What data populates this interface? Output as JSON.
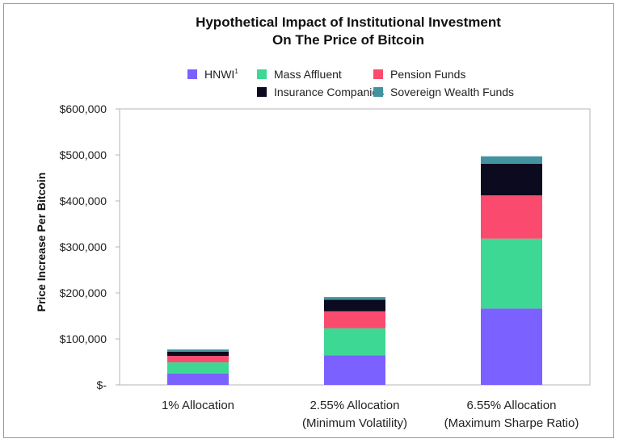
{
  "chart_data": {
    "type": "bar",
    "stacked": true,
    "title": [
      "Hypothetical Impact of Institutional Investment",
      "On The Price of Bitcoin"
    ],
    "ylabel": "Price Increase Per Bitcoin",
    "xlabel": "",
    "ylim": [
      0,
      600000
    ],
    "yticks": [
      0,
      100000,
      200000,
      300000,
      400000,
      500000,
      600000
    ],
    "ytick_labels": [
      "$-",
      "$100,000",
      "$200,000",
      "$300,000",
      "$400,000",
      "$500,000",
      "$600,000"
    ],
    "categories": [
      [
        "1% Allocation"
      ],
      [
        "2.55% Allocation",
        "(Minimum Volatility)"
      ],
      [
        "6.55% Allocation",
        "(Maximum Sharpe Ratio)"
      ]
    ],
    "legend_position": "top",
    "series": [
      {
        "name": "HNWI",
        "name_sup": "1",
        "color": "#7b61ff",
        "values": [
          25000,
          64000,
          166000
        ]
      },
      {
        "name": "Mass Affluent",
        "color": "#3dd894",
        "values": [
          24000,
          59000,
          152000
        ]
      },
      {
        "name": "Pension Funds",
        "color": "#fa4b6e",
        "values": [
          14000,
          37000,
          94000
        ]
      },
      {
        "name": "Insurance Companies",
        "color": "#0b0a1e",
        "values": [
          9000,
          25000,
          69000
        ]
      },
      {
        "name": "Sovereign Wealth Funds",
        "color": "#43929f",
        "values": [
          5000,
          6000,
          16000
        ]
      }
    ]
  }
}
